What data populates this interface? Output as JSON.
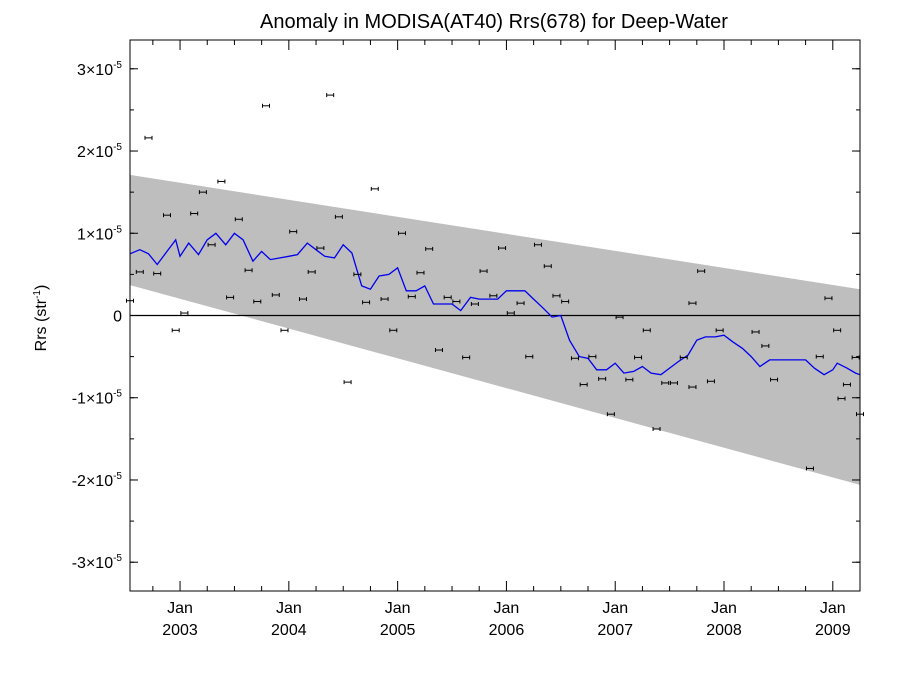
{
  "chart_data": {
    "type": "scatter",
    "title": "Anomaly in MODISA(AT40) Rrs(678) for Deep-Water",
    "ylabel": "Rrs (str",
    "ylabel_sup": "-1",
    "ylabel_end": ")",
    "xlim": [
      2002.54,
      2009.25
    ],
    "ylim": [
      -3.35e-05,
      3.35e-05
    ],
    "x_ticks": [
      {
        "x": 2003.0,
        "month": "Jan",
        "year": "2003"
      },
      {
        "x": 2004.0,
        "month": "Jan",
        "year": "2004"
      },
      {
        "x": 2005.0,
        "month": "Jan",
        "year": "2005"
      },
      {
        "x": 2006.0,
        "month": "Jan",
        "year": "2006"
      },
      {
        "x": 2007.0,
        "month": "Jan",
        "year": "2007"
      },
      {
        "x": 2008.0,
        "month": "Jan",
        "year": "2008"
      },
      {
        "x": 2009.0,
        "month": "Jan",
        "year": "2009"
      }
    ],
    "y_ticks": [
      {
        "value": 3e-05,
        "mant": "3",
        "exp": "-5"
      },
      {
        "value": 2e-05,
        "mant": "2",
        "exp": "-5"
      },
      {
        "value": 1e-05,
        "mant": "1",
        "exp": "-5"
      },
      {
        "value": 0,
        "mant": "0",
        "exp": ""
      },
      {
        "value": -1e-05,
        "mant": "-1",
        "exp": "-5"
      },
      {
        "value": -2e-05,
        "mant": "-2",
        "exp": "-5"
      },
      {
        "value": -3e-05,
        "mant": "-3",
        "exp": "-5"
      }
    ],
    "times_symbol": "×10",
    "band": {
      "upper": [
        [
          2002.54,
          1.71e-05
        ],
        [
          2009.25,
          3.2e-06
        ]
      ],
      "lower": [
        [
          2002.54,
          3.7e-06
        ],
        [
          2009.25,
          -2.06e-05
        ]
      ]
    },
    "series": [
      {
        "kind": "monthly-points-with-error-bars",
        "points": [
          [
            2002.54,
            1.8e-06
          ],
          [
            2002.63,
            5.3e-06
          ],
          [
            2002.71,
            2.16e-05
          ],
          [
            2002.79,
            5.1e-06
          ],
          [
            2002.88,
            1.22e-05
          ],
          [
            2002.96,
            -1.8e-06
          ],
          [
            2003.04,
            3e-07
          ],
          [
            2003.13,
            1.24e-05
          ],
          [
            2003.21,
            1.5e-05
          ],
          [
            2003.29,
            8.6e-06
          ],
          [
            2003.38,
            1.63e-05
          ],
          [
            2003.46,
            2.2e-06
          ],
          [
            2003.54,
            1.17e-05
          ],
          [
            2003.63,
            5.5e-06
          ],
          [
            2003.71,
            1.7e-06
          ],
          [
            2003.79,
            2.55e-05
          ],
          [
            2003.88,
            2.5e-06
          ],
          [
            2003.96,
            -1.8e-06
          ],
          [
            2004.04,
            1.02e-05
          ],
          [
            2004.13,
            2e-06
          ],
          [
            2004.21,
            5.3e-06
          ],
          [
            2004.29,
            8.2e-06
          ],
          [
            2004.38,
            2.68e-05
          ],
          [
            2004.46,
            1.2e-05
          ],
          [
            2004.54,
            -8.1e-06
          ],
          [
            2004.63,
            5e-06
          ],
          [
            2004.71,
            1.6e-06
          ],
          [
            2004.79,
            1.54e-05
          ],
          [
            2004.88,
            2e-06
          ],
          [
            2004.96,
            -1.8e-06
          ],
          [
            2005.04,
            1e-05
          ],
          [
            2005.13,
            2.3e-06
          ],
          [
            2005.21,
            5.2e-06
          ],
          [
            2005.29,
            8.1e-06
          ],
          [
            2005.38,
            -4.2e-06
          ],
          [
            2005.46,
            2.2e-06
          ],
          [
            2005.54,
            1.7e-06
          ],
          [
            2005.63,
            -5.1e-06
          ],
          [
            2005.71,
            1.4e-06
          ],
          [
            2005.79,
            5.4e-06
          ],
          [
            2005.88,
            2.4e-06
          ],
          [
            2005.96,
            8.2e-06
          ],
          [
            2006.04,
            3e-07
          ],
          [
            2006.13,
            1.5e-06
          ],
          [
            2006.21,
            -5e-06
          ],
          [
            2006.29,
            8.6e-06
          ],
          [
            2006.38,
            6e-06
          ],
          [
            2006.46,
            2.4e-06
          ],
          [
            2006.54,
            1.7e-06
          ],
          [
            2006.63,
            -5.2e-06
          ],
          [
            2006.71,
            -8.4e-06
          ],
          [
            2006.79,
            -5e-06
          ],
          [
            2006.88,
            -7.7e-06
          ],
          [
            2006.96,
            -1.2e-05
          ],
          [
            2007.04,
            -2e-07
          ],
          [
            2007.13,
            -7.8e-06
          ],
          [
            2007.21,
            -5.1e-06
          ],
          [
            2007.29,
            -1.8e-06
          ],
          [
            2007.38,
            -1.38e-05
          ],
          [
            2007.46,
            -8.2e-06
          ],
          [
            2007.54,
            -8.2e-06
          ],
          [
            2007.63,
            -5.1e-06
          ],
          [
            2007.71,
            -8.7e-06
          ],
          [
            2007.71,
            1.5e-06
          ],
          [
            2007.79,
            5.4e-06
          ],
          [
            2007.88,
            -8e-06
          ],
          [
            2007.96,
            -1.8e-06
          ],
          [
            2008.29,
            -2e-06
          ],
          [
            2008.38,
            -3.7e-06
          ],
          [
            2008.46,
            -7.8e-06
          ],
          [
            2008.79,
            -1.86e-05
          ],
          [
            2008.88,
            -5e-06
          ],
          [
            2008.96,
            2.1e-06
          ],
          [
            2009.04,
            -1.8e-06
          ],
          [
            2009.08,
            -1.01e-05
          ],
          [
            2009.13,
            -8.4e-06
          ],
          [
            2009.21,
            -5.1e-06
          ],
          [
            2009.25,
            -1.2e-05
          ]
        ]
      },
      {
        "kind": "running-mean-line",
        "color": "#0000ee",
        "points": [
          [
            2002.54,
            7.5e-06
          ],
          [
            2002.63,
            8e-06
          ],
          [
            2002.71,
            7.5e-06
          ],
          [
            2002.79,
            6.2e-06
          ],
          [
            2002.88,
            7.8e-06
          ],
          [
            2002.96,
            9.2e-06
          ],
          [
            2003.0,
            7.2e-06
          ],
          [
            2003.08,
            8.8e-06
          ],
          [
            2003.17,
            7.4e-06
          ],
          [
            2003.25,
            9.2e-06
          ],
          [
            2003.33,
            1e-05
          ],
          [
            2003.42,
            8.6e-06
          ],
          [
            2003.5,
            1e-05
          ],
          [
            2003.58,
            9.2e-06
          ],
          [
            2003.67,
            6.6e-06
          ],
          [
            2003.75,
            7.8e-06
          ],
          [
            2003.83,
            6.8e-06
          ],
          [
            2003.92,
            7e-06
          ],
          [
            2004.0,
            7.2e-06
          ],
          [
            2004.08,
            7.4e-06
          ],
          [
            2004.17,
            8.8e-06
          ],
          [
            2004.25,
            8e-06
          ],
          [
            2004.33,
            7.2e-06
          ],
          [
            2004.42,
            7e-06
          ],
          [
            2004.5,
            8.6e-06
          ],
          [
            2004.58,
            7.6e-06
          ],
          [
            2004.67,
            3.6e-06
          ],
          [
            2004.75,
            3.2e-06
          ],
          [
            2004.83,
            4.8e-06
          ],
          [
            2004.92,
            5e-06
          ],
          [
            2005.0,
            5.8e-06
          ],
          [
            2005.08,
            3e-06
          ],
          [
            2005.17,
            3e-06
          ],
          [
            2005.25,
            3.6e-06
          ],
          [
            2005.33,
            1.4e-06
          ],
          [
            2005.42,
            1.4e-06
          ],
          [
            2005.5,
            1.4e-06
          ],
          [
            2005.58,
            6e-07
          ],
          [
            2005.67,
            2.2e-06
          ],
          [
            2005.75,
            2e-06
          ],
          [
            2005.83,
            2e-06
          ],
          [
            2005.92,
            2e-06
          ],
          [
            2006.0,
            3e-06
          ],
          [
            2006.08,
            3e-06
          ],
          [
            2006.17,
            3e-06
          ],
          [
            2006.25,
            2e-06
          ],
          [
            2006.33,
            1e-06
          ],
          [
            2006.42,
            -2e-07
          ],
          [
            2006.5,
            0.0
          ],
          [
            2006.58,
            -3e-06
          ],
          [
            2006.67,
            -5e-06
          ],
          [
            2006.75,
            -5.2e-06
          ],
          [
            2006.83,
            -6.6e-06
          ],
          [
            2006.92,
            -6.6e-06
          ],
          [
            2007.0,
            -5.8e-06
          ],
          [
            2007.08,
            -7e-06
          ],
          [
            2007.17,
            -6.8e-06
          ],
          [
            2007.25,
            -6.2e-06
          ],
          [
            2007.33,
            -7e-06
          ],
          [
            2007.42,
            -7.2e-06
          ],
          [
            2007.5,
            -6.4e-06
          ],
          [
            2007.58,
            -5.6e-06
          ],
          [
            2007.67,
            -4.8e-06
          ],
          [
            2007.75,
            -3e-06
          ],
          [
            2007.83,
            -2.6e-06
          ],
          [
            2007.92,
            -2.6e-06
          ],
          [
            2008.0,
            -2.4e-06
          ],
          [
            2008.08,
            -3.2e-06
          ],
          [
            2008.17,
            -4e-06
          ],
          [
            2008.25,
            -5e-06
          ],
          [
            2008.33,
            -6.2e-06
          ],
          [
            2008.42,
            -5.4e-06
          ],
          [
            2008.5,
            -5.4e-06
          ],
          [
            2008.58,
            -5.4e-06
          ],
          [
            2008.67,
            -5.4e-06
          ],
          [
            2008.75,
            -5.4e-06
          ],
          [
            2008.83,
            -6.4e-06
          ],
          [
            2008.92,
            -7.2e-06
          ],
          [
            2009.0,
            -6.6e-06
          ],
          [
            2009.04,
            -5.8e-06
          ],
          [
            2009.13,
            -6.4e-06
          ],
          [
            2009.21,
            -7e-06
          ],
          [
            2009.25,
            -7.2e-06
          ]
        ]
      }
    ]
  }
}
